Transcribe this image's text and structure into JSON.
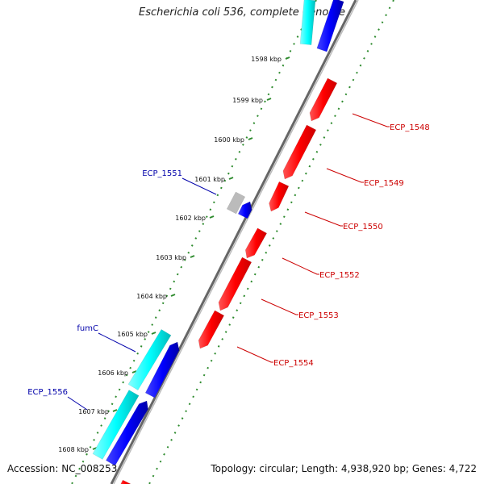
{
  "title": "Escherichia coli 536, complete genome",
  "accession": "Accession: NC_008253",
  "summary": "Topology: circular; Length: 4,938,920 bp; Genes: 4,722",
  "colors": {
    "backbone": "#808080",
    "ruler": "#2e8b2e",
    "reverse_label": "#0000aa",
    "forward_label": "#cc0000",
    "forward_gene": "#ff0000",
    "reverse_gene": "#0000ff",
    "rna_gene": "#00ffff",
    "other_gene": "#bbbbbb"
  },
  "ticks": [
    "1598 kbp",
    "1599 kbp",
    "1600 kbp",
    "1601 kbp",
    "1602 kbp",
    "1603 kbp",
    "1604 kbp",
    "1605 kbp",
    "1606 kbp",
    "1607 kbp",
    "1608 kbp"
  ],
  "labels": {
    "forward": [
      "ECP_1548",
      "ECP_1549",
      "ECP_1550",
      "ECP_1552",
      "ECP_1553",
      "ECP_1554"
    ],
    "reverse": [
      "ECP_1551",
      "fumC",
      "ECP_1556"
    ]
  }
}
